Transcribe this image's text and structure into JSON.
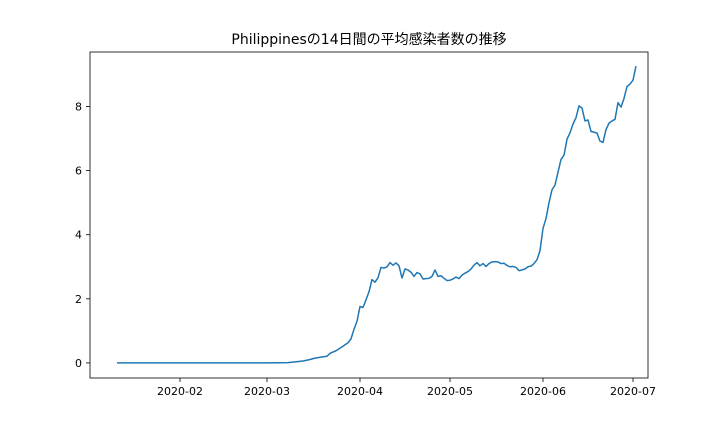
{
  "chart_data": {
    "type": "line",
    "title": "Philippinesの14日間の平均感染者数の推移",
    "xlabel": "",
    "ylabel": "",
    "x_tick_labels": [
      "2020-02",
      "2020-03",
      "2020-04",
      "2020-05",
      "2020-06",
      "2020-07"
    ],
    "y_tick_labels": [
      "0",
      "2",
      "4",
      "6",
      "8"
    ],
    "xlim": [
      "2020-01-02",
      "2020-07-06"
    ],
    "ylim": [
      -0.47,
      9.7
    ],
    "grid": false,
    "legend": "none",
    "series": [
      {
        "color": "#1f77b4",
        "points": [
          [
            "2020-01-11",
            0.0
          ],
          [
            "2020-01-20",
            0.0
          ],
          [
            "2020-02-01",
            0.0
          ],
          [
            "2020-02-15",
            0.0
          ],
          [
            "2020-03-01",
            0.0
          ],
          [
            "2020-03-08",
            0.01
          ],
          [
            "2020-03-10",
            0.03
          ],
          [
            "2020-03-13",
            0.06
          ],
          [
            "2020-03-15",
            0.1
          ],
          [
            "2020-03-17",
            0.15
          ],
          [
            "2020-03-19",
            0.18
          ],
          [
            "2020-03-21",
            0.21
          ],
          [
            "2020-03-22",
            0.3
          ],
          [
            "2020-03-24",
            0.38
          ],
          [
            "2020-03-26",
            0.5
          ],
          [
            "2020-03-28",
            0.63
          ],
          [
            "2020-03-29",
            0.75
          ],
          [
            "2020-03-30",
            1.05
          ],
          [
            "2020-03-31",
            1.3
          ],
          [
            "2020-04-01",
            1.76
          ],
          [
            "2020-04-02",
            1.73
          ],
          [
            "2020-04-03",
            1.97
          ],
          [
            "2020-04-04",
            2.22
          ],
          [
            "2020-04-05",
            2.6
          ],
          [
            "2020-04-06",
            2.52
          ],
          [
            "2020-04-07",
            2.66
          ],
          [
            "2020-04-08",
            2.98
          ],
          [
            "2020-04-09",
            2.96
          ],
          [
            "2020-04-10",
            3.0
          ],
          [
            "2020-04-11",
            3.13
          ],
          [
            "2020-04-12",
            3.05
          ],
          [
            "2020-04-13",
            3.12
          ],
          [
            "2020-04-14",
            3.03
          ],
          [
            "2020-04-15",
            2.65
          ],
          [
            "2020-04-16",
            2.93
          ],
          [
            "2020-04-17",
            2.9
          ],
          [
            "2020-04-18",
            2.83
          ],
          [
            "2020-04-19",
            2.7
          ],
          [
            "2020-04-20",
            2.82
          ],
          [
            "2020-04-21",
            2.78
          ],
          [
            "2020-04-22",
            2.62
          ],
          [
            "2020-04-23",
            2.63
          ],
          [
            "2020-04-24",
            2.64
          ],
          [
            "2020-04-25",
            2.7
          ],
          [
            "2020-04-26",
            2.9
          ],
          [
            "2020-04-27",
            2.7
          ],
          [
            "2020-04-28",
            2.72
          ],
          [
            "2020-04-29",
            2.64
          ],
          [
            "2020-04-30",
            2.57
          ],
          [
            "2020-05-01",
            2.58
          ],
          [
            "2020-05-02",
            2.62
          ],
          [
            "2020-05-03",
            2.68
          ],
          [
            "2020-05-04",
            2.63
          ],
          [
            "2020-05-05",
            2.74
          ],
          [
            "2020-05-06",
            2.8
          ],
          [
            "2020-05-07",
            2.85
          ],
          [
            "2020-05-08",
            2.93
          ],
          [
            "2020-05-09",
            3.05
          ],
          [
            "2020-05-10",
            3.13
          ],
          [
            "2020-05-11",
            3.03
          ],
          [
            "2020-05-12",
            3.1
          ],
          [
            "2020-05-13",
            3.01
          ],
          [
            "2020-05-14",
            3.1
          ],
          [
            "2020-05-15",
            3.15
          ],
          [
            "2020-05-16",
            3.16
          ],
          [
            "2020-05-17",
            3.15
          ],
          [
            "2020-05-18",
            3.1
          ],
          [
            "2020-05-19",
            3.11
          ],
          [
            "2020-05-20",
            3.04
          ],
          [
            "2020-05-21",
            3.0
          ],
          [
            "2020-05-22",
            3.01
          ],
          [
            "2020-05-23",
            2.98
          ],
          [
            "2020-05-24",
            2.88
          ],
          [
            "2020-05-25",
            2.9
          ],
          [
            "2020-05-26",
            2.93
          ],
          [
            "2020-05-27",
            3.0
          ],
          [
            "2020-05-28",
            3.02
          ],
          [
            "2020-05-29",
            3.1
          ],
          [
            "2020-05-30",
            3.22
          ],
          [
            "2020-05-31",
            3.5
          ],
          [
            "2020-06-01",
            4.2
          ],
          [
            "2020-06-02",
            4.5
          ],
          [
            "2020-06-03",
            5.0
          ],
          [
            "2020-06-04",
            5.4
          ],
          [
            "2020-06-05",
            5.55
          ],
          [
            "2020-06-06",
            5.95
          ],
          [
            "2020-06-07",
            6.35
          ],
          [
            "2020-06-08",
            6.48
          ],
          [
            "2020-06-09",
            6.98
          ],
          [
            "2020-06-10",
            7.18
          ],
          [
            "2020-06-11",
            7.45
          ],
          [
            "2020-06-12",
            7.65
          ],
          [
            "2020-06-13",
            8.02
          ],
          [
            "2020-06-14",
            7.95
          ],
          [
            "2020-06-15",
            7.55
          ],
          [
            "2020-06-16",
            7.58
          ],
          [
            "2020-06-17",
            7.22
          ],
          [
            "2020-06-18",
            7.2
          ],
          [
            "2020-06-19",
            7.17
          ],
          [
            "2020-06-20",
            6.92
          ],
          [
            "2020-06-21",
            6.88
          ],
          [
            "2020-06-22",
            7.28
          ],
          [
            "2020-06-23",
            7.48
          ],
          [
            "2020-06-24",
            7.55
          ],
          [
            "2020-06-25",
            7.6
          ],
          [
            "2020-06-26",
            8.12
          ],
          [
            "2020-06-27",
            7.98
          ],
          [
            "2020-06-28",
            8.25
          ],
          [
            "2020-06-29",
            8.62
          ],
          [
            "2020-06-30",
            8.7
          ],
          [
            "2020-07-01",
            8.82
          ],
          [
            "2020-07-02",
            9.26
          ]
        ]
      }
    ]
  }
}
